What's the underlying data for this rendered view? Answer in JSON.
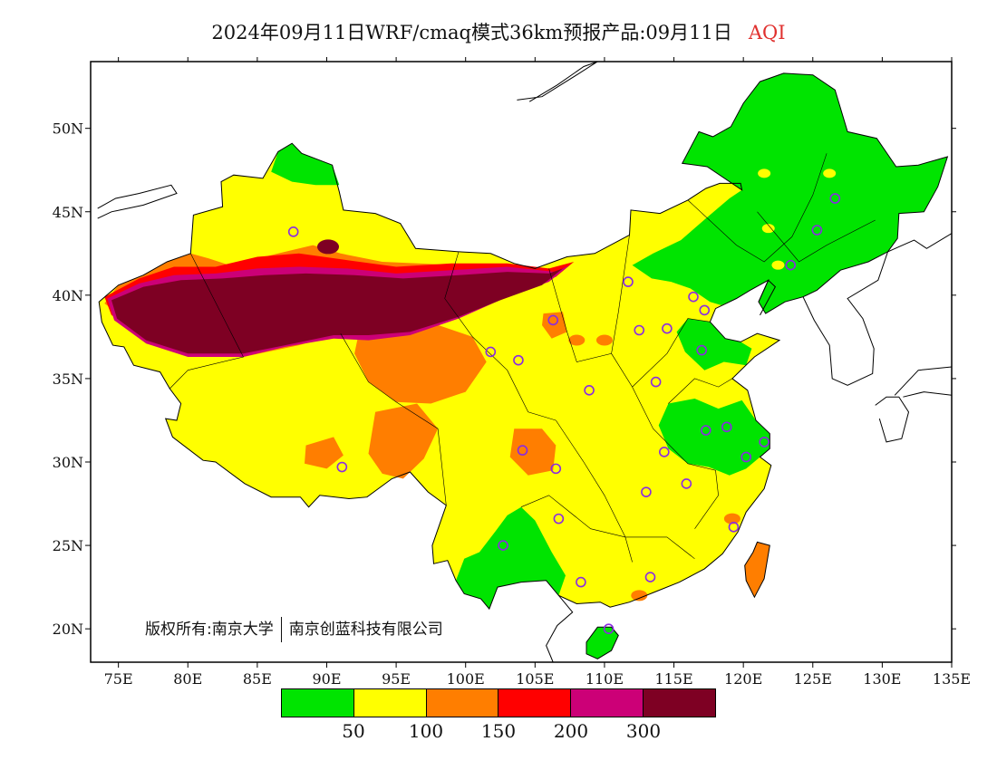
{
  "title": {
    "main": "2024年09月11日WRF/cmaq模式36km预报产品:09月11日",
    "variable": "AQI"
  },
  "axes": {
    "lon_min": 73,
    "lon_max": 135,
    "lat_min": 18,
    "lat_max": 54,
    "x_ticks": [
      {
        "value": 75,
        "label": "75E"
      },
      {
        "value": 80,
        "label": "80E"
      },
      {
        "value": 85,
        "label": "85E"
      },
      {
        "value": 90,
        "label": "90E"
      },
      {
        "value": 95,
        "label": "95E"
      },
      {
        "value": 100,
        "label": "100E"
      },
      {
        "value": 105,
        "label": "105E"
      },
      {
        "value": 110,
        "label": "110E"
      },
      {
        "value": 115,
        "label": "115E"
      },
      {
        "value": 120,
        "label": "120E"
      },
      {
        "value": 125,
        "label": "125E"
      },
      {
        "value": 130,
        "label": "130E"
      },
      {
        "value": 135,
        "label": "135E"
      }
    ],
    "y_ticks": [
      {
        "value": 20,
        "label": "20N"
      },
      {
        "value": 25,
        "label": "25N"
      },
      {
        "value": 30,
        "label": "30N"
      },
      {
        "value": 35,
        "label": "35N"
      },
      {
        "value": 40,
        "label": "40N"
      },
      {
        "value": 45,
        "label": "45N"
      },
      {
        "value": 50,
        "label": "50N"
      }
    ]
  },
  "legend": {
    "colors": [
      "#00e400",
      "#ffff00",
      "#ff7e00",
      "#ff0000",
      "#cc0077",
      "#7e0023"
    ],
    "labels": [
      "50",
      "100",
      "150",
      "200",
      "300"
    ]
  },
  "copyright": {
    "left": "版权所有:南京大学",
    "right": "南京创蓝科技有限公司"
  },
  "colors": {
    "good": "#00e400",
    "moderate": "#ffff00",
    "usg": "#ff7e00",
    "unhealthy": "#ff0000",
    "very_unhealthy": "#cc0077",
    "hazardous": "#7e0023",
    "city_marker": "#8a2be2"
  },
  "cities": [
    {
      "lon": 87.6,
      "lat": 43.8
    },
    {
      "lon": 91.1,
      "lat": 29.7
    },
    {
      "lon": 101.8,
      "lat": 36.6
    },
    {
      "lon": 103.8,
      "lat": 36.1
    },
    {
      "lon": 106.3,
      "lat": 38.5
    },
    {
      "lon": 108.9,
      "lat": 34.3
    },
    {
      "lon": 104.1,
      "lat": 30.7
    },
    {
      "lon": 106.5,
      "lat": 29.6
    },
    {
      "lon": 106.7,
      "lat": 26.6
    },
    {
      "lon": 102.7,
      "lat": 25.0
    },
    {
      "lon": 108.3,
      "lat": 22.8
    },
    {
      "lon": 110.3,
      "lat": 20.0
    },
    {
      "lon": 113.3,
      "lat": 23.1
    },
    {
      "lon": 113.0,
      "lat": 28.2
    },
    {
      "lon": 114.3,
      "lat": 30.6
    },
    {
      "lon": 115.9,
      "lat": 28.7
    },
    {
      "lon": 119.3,
      "lat": 26.1
    },
    {
      "lon": 120.2,
      "lat": 30.3
    },
    {
      "lon": 121.5,
      "lat": 31.2
    },
    {
      "lon": 118.8,
      "lat": 32.1
    },
    {
      "lon": 117.3,
      "lat": 31.9
    },
    {
      "lon": 113.7,
      "lat": 34.8
    },
    {
      "lon": 117.0,
      "lat": 36.7
    },
    {
      "lon": 114.5,
      "lat": 38.0
    },
    {
      "lon": 112.5,
      "lat": 37.9
    },
    {
      "lon": 111.7,
      "lat": 40.8
    },
    {
      "lon": 116.4,
      "lat": 39.9
    },
    {
      "lon": 117.2,
      "lat": 39.1
    },
    {
      "lon": 123.4,
      "lat": 41.8
    },
    {
      "lon": 125.3,
      "lat": 43.9
    },
    {
      "lon": 126.6,
      "lat": 45.8
    }
  ]
}
